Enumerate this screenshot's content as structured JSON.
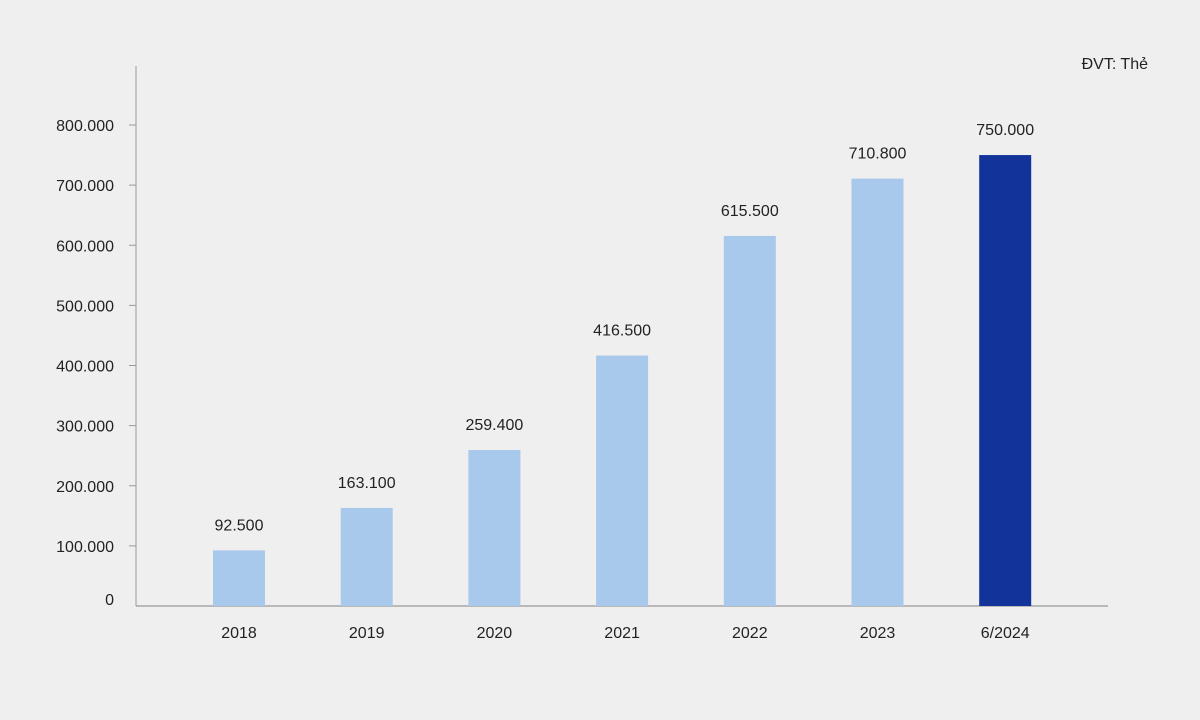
{
  "chart_data": {
    "type": "bar",
    "unit_label": "ĐVT: Thẻ",
    "categories": [
      "2018",
      "2019",
      "2020",
      "2021",
      "2022",
      "2023",
      "6/2024"
    ],
    "values": [
      92500,
      163100,
      259400,
      416500,
      615500,
      710800,
      750000
    ],
    "value_labels": [
      "92.500",
      "163.100",
      "259.400",
      "416.500",
      "615.500",
      "710.800",
      "750.000"
    ],
    "ylim": [
      0,
      800000
    ],
    "yticks": [
      0,
      100000,
      200000,
      300000,
      400000,
      500000,
      600000,
      700000,
      800000
    ],
    "ytick_labels": [
      "0",
      "100.000",
      "200.000",
      "300.000",
      "400.000",
      "500.000",
      "600.000",
      "700.000",
      "800.000"
    ],
    "grid": false,
    "legend": "none",
    "colors": {
      "bar": "#a8c8ec",
      "highlight_bar": "#12349a",
      "axis": "#999999",
      "text": "#222222",
      "background": "#efefef"
    },
    "highlight_index": 6
  }
}
